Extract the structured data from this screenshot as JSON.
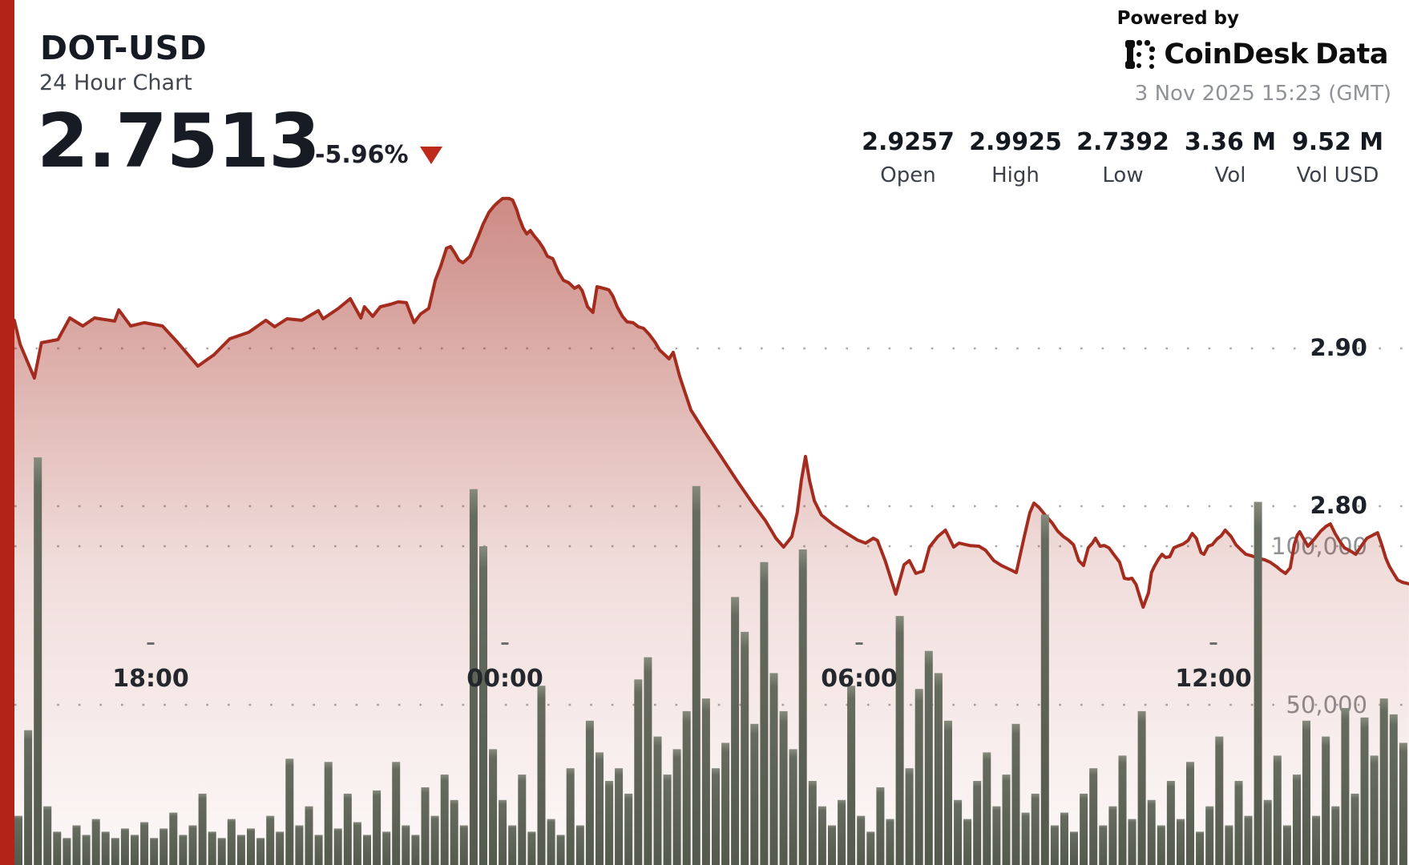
{
  "header": {
    "symbol": "DOT-USD",
    "subtitle": "24 Hour Chart",
    "price": "2.7513",
    "change": "-5.96%",
    "direction_icon": "down-triangle"
  },
  "branding": {
    "powered_by": "Powered by",
    "brand_name_1": "CoinDesk",
    "brand_name_2": "Data",
    "icon": "coindesk-logo-icon",
    "timestamp": "3 Nov 2025 15:23 (GMT)"
  },
  "stats": [
    {
      "value": "2.9257",
      "label": "Open"
    },
    {
      "value": "2.9925",
      "label": "High"
    },
    {
      "value": "2.7392",
      "label": "Low"
    },
    {
      "value": "3.36 M",
      "label": "Vol"
    },
    {
      "value": "9.52 M",
      "label": "Vol USD"
    }
  ],
  "colors": {
    "accent_red": "#b22418",
    "line_red": "#a42c1f",
    "area_red_rgb": "164,44,32",
    "bar_body": "#666b5f",
    "bar_top": "#868b7e",
    "bar_bottom": "#555a4e",
    "grid_dot": "#a9a9a9",
    "vol_label": "#8d9094",
    "price_label": "#1d212a",
    "x_label": "#24272c"
  },
  "chart_data": {
    "type": "area",
    "title": "DOT-USD 24 Hour Chart",
    "note": "t = hours since 00:00 of previous day (GMT); values >= 24 are current day. Chart window ends 3 Nov 2025 15:23 GMT.",
    "x_ticks": [
      {
        "label": "18:00",
        "t": 18
      },
      {
        "label": "00:00",
        "t": 24
      },
      {
        "label": "06:00",
        "t": 30
      },
      {
        "label": "12:00",
        "t": 36
      }
    ],
    "price_ticks": [
      {
        "label": "2.90",
        "value": 2.9
      },
      {
        "label": "2.80",
        "value": 2.8
      }
    ],
    "volume_ticks": [
      {
        "label": "100,000",
        "value": 100
      },
      {
        "label": "50,000",
        "value": 50
      }
    ],
    "price_range_visible": {
      "low": 2.7392,
      "high": 2.9925
    },
    "grid": "dotted-horizontal",
    "legend_position": "none",
    "price_series": [
      [
        15.69,
        2.9178
      ],
      [
        15.79,
        2.9025
      ],
      [
        16.03,
        2.8812
      ],
      [
        16.15,
        2.9036
      ],
      [
        16.43,
        2.9056
      ],
      [
        16.63,
        2.9193
      ],
      [
        16.85,
        2.9142
      ],
      [
        17.05,
        2.9193
      ],
      [
        17.39,
        2.9173
      ],
      [
        17.46,
        2.9244
      ],
      [
        17.66,
        2.9142
      ],
      [
        17.89,
        2.9163
      ],
      [
        18.2,
        2.9142
      ],
      [
        18.46,
        2.9036
      ],
      [
        18.8,
        2.8888
      ],
      [
        19.07,
        2.8959
      ],
      [
        19.34,
        2.9061
      ],
      [
        19.66,
        2.9102
      ],
      [
        19.95,
        2.9178
      ],
      [
        20.1,
        2.9137
      ],
      [
        20.31,
        2.9188
      ],
      [
        20.56,
        2.9178
      ],
      [
        20.84,
        2.9239
      ],
      [
        20.92,
        2.9188
      ],
      [
        21.18,
        2.9254
      ],
      [
        21.38,
        2.9315
      ],
      [
        21.56,
        2.9193
      ],
      [
        21.62,
        2.9264
      ],
      [
        21.76,
        2.9203
      ],
      [
        21.89,
        2.9264
      ],
      [
        22.06,
        2.9279
      ],
      [
        22.19,
        2.9295
      ],
      [
        22.33,
        2.929
      ],
      [
        22.46,
        2.9163
      ],
      [
        22.57,
        2.9218
      ],
      [
        22.71,
        2.9254
      ],
      [
        22.82,
        2.9432
      ],
      [
        22.91,
        2.9518
      ],
      [
        23.01,
        2.9635
      ],
      [
        23.08,
        2.9645
      ],
      [
        23.16,
        2.9599
      ],
      [
        23.22,
        2.9559
      ],
      [
        23.29,
        2.9543
      ],
      [
        23.41,
        2.9584
      ],
      [
        23.48,
        2.965
      ],
      [
        23.55,
        2.9711
      ],
      [
        23.63,
        2.9787
      ],
      [
        23.73,
        2.9863
      ],
      [
        23.82,
        2.9904
      ],
      [
        23.89,
        2.9929
      ],
      [
        23.96,
        2.995
      ],
      [
        24.07,
        2.995
      ],
      [
        24.13,
        2.994
      ],
      [
        24.2,
        2.9879
      ],
      [
        24.24,
        2.9828
      ],
      [
        24.31,
        2.9762
      ],
      [
        24.37,
        2.9726
      ],
      [
        24.43,
        2.9747
      ],
      [
        24.5,
        2.9711
      ],
      [
        24.58,
        2.9675
      ],
      [
        24.65,
        2.9635
      ],
      [
        24.72,
        2.9584
      ],
      [
        24.81,
        2.9569
      ],
      [
        24.91,
        2.9482
      ],
      [
        24.99,
        2.9432
      ],
      [
        25.08,
        2.9416
      ],
      [
        25.18,
        2.9381
      ],
      [
        25.25,
        2.9396
      ],
      [
        25.31,
        2.9365
      ],
      [
        25.4,
        2.9264
      ],
      [
        25.49,
        2.9228
      ],
      [
        25.56,
        2.9391
      ],
      [
        25.67,
        2.9381
      ],
      [
        25.76,
        2.9371
      ],
      [
        25.83,
        2.933
      ],
      [
        25.9,
        2.9264
      ],
      [
        25.99,
        2.9203
      ],
      [
        26.07,
        2.9168
      ],
      [
        26.17,
        2.9163
      ],
      [
        26.26,
        2.9137
      ],
      [
        26.35,
        2.9127
      ],
      [
        26.44,
        2.9091
      ],
      [
        26.54,
        2.9041
      ],
      [
        26.62,
        2.899
      ],
      [
        26.71,
        2.8959
      ],
      [
        26.78,
        2.8934
      ],
      [
        26.85,
        2.8975
      ],
      [
        26.96,
        2.8822
      ],
      [
        27.05,
        2.8721
      ],
      [
        27.15,
        2.8609
      ],
      [
        27.39,
        2.8467
      ],
      [
        27.66,
        2.8315
      ],
      [
        27.93,
        2.8162
      ],
      [
        28.21,
        2.801
      ],
      [
        28.41,
        2.7909
      ],
      [
        28.59,
        2.7797
      ],
      [
        28.72,
        2.7741
      ],
      [
        28.86,
        2.7807
      ],
      [
        28.95,
        2.7959
      ],
      [
        29.02,
        2.8162
      ],
      [
        29.09,
        2.8315
      ],
      [
        29.16,
        2.8162
      ],
      [
        29.24,
        2.8035
      ],
      [
        29.36,
        2.7944
      ],
      [
        29.56,
        2.7883
      ],
      [
        29.77,
        2.7832
      ],
      [
        29.97,
        2.7786
      ],
      [
        30.11,
        2.7766
      ],
      [
        30.24,
        2.7797
      ],
      [
        30.31,
        2.7782
      ],
      [
        30.44,
        2.7655
      ],
      [
        30.62,
        2.7442
      ],
      [
        30.76,
        2.7629
      ],
      [
        30.85,
        2.7655
      ],
      [
        30.96,
        2.7574
      ],
      [
        31.08,
        2.7589
      ],
      [
        31.19,
        2.7741
      ],
      [
        31.33,
        2.7807
      ],
      [
        31.46,
        2.7848
      ],
      [
        31.6,
        2.7741
      ],
      [
        31.69,
        2.7766
      ],
      [
        31.87,
        2.7751
      ],
      [
        32.03,
        2.7746
      ],
      [
        32.14,
        2.7721
      ],
      [
        32.28,
        2.7655
      ],
      [
        32.41,
        2.7624
      ],
      [
        32.58,
        2.7594
      ],
      [
        32.66,
        2.7579
      ],
      [
        32.79,
        2.7797
      ],
      [
        32.89,
        2.7959
      ],
      [
        32.96,
        2.802
      ],
      [
        33.05,
        2.799
      ],
      [
        33.16,
        2.7939
      ],
      [
        33.27,
        2.7893
      ],
      [
        33.36,
        2.7843
      ],
      [
        33.46,
        2.7807
      ],
      [
        33.54,
        2.7787
      ],
      [
        33.63,
        2.7756
      ],
      [
        33.72,
        2.7655
      ],
      [
        33.8,
        2.7624
      ],
      [
        33.88,
        2.7736
      ],
      [
        33.95,
        2.7766
      ],
      [
        34.0,
        2.7797
      ],
      [
        34.08,
        2.7746
      ],
      [
        34.15,
        2.7751
      ],
      [
        34.23,
        2.7736
      ],
      [
        34.31,
        2.7695
      ],
      [
        34.41,
        2.7645
      ],
      [
        34.49,
        2.7543
      ],
      [
        34.56,
        2.7538
      ],
      [
        34.62,
        2.7543
      ],
      [
        34.69,
        2.7503
      ],
      [
        34.76,
        2.7416
      ],
      [
        34.81,
        2.736
      ],
      [
        34.9,
        2.7452
      ],
      [
        34.95,
        2.7579
      ],
      [
        35.0,
        2.7619
      ],
      [
        35.07,
        2.7665
      ],
      [
        35.13,
        2.7695
      ],
      [
        35.19,
        2.7675
      ],
      [
        35.26,
        2.768
      ],
      [
        35.33,
        2.7736
      ],
      [
        35.42,
        2.7751
      ],
      [
        35.49,
        2.7761
      ],
      [
        35.57,
        2.7782
      ],
      [
        35.64,
        2.7827
      ],
      [
        35.71,
        2.7797
      ],
      [
        35.79,
        2.7706
      ],
      [
        35.84,
        2.7695
      ],
      [
        35.91,
        2.7746
      ],
      [
        35.98,
        2.7756
      ],
      [
        36.06,
        2.7792
      ],
      [
        36.13,
        2.7812
      ],
      [
        36.2,
        2.7848
      ],
      [
        36.3,
        2.7807
      ],
      [
        36.38,
        2.7756
      ],
      [
        36.46,
        2.7726
      ],
      [
        36.55,
        2.7695
      ],
      [
        36.65,
        2.7685
      ],
      [
        36.76,
        2.767
      ],
      [
        36.87,
        2.766
      ],
      [
        36.96,
        2.7645
      ],
      [
        37.06,
        2.7619
      ],
      [
        37.14,
        2.7594
      ],
      [
        37.22,
        2.7574
      ],
      [
        37.3,
        2.7609
      ],
      [
        37.37,
        2.7756
      ],
      [
        37.42,
        2.7817
      ],
      [
        37.46,
        2.7838
      ],
      [
        37.53,
        2.7792
      ],
      [
        37.6,
        2.7746
      ],
      [
        37.71,
        2.7792
      ],
      [
        37.82,
        2.7843
      ],
      [
        37.91,
        2.7873
      ],
      [
        37.98,
        2.7888
      ],
      [
        38.06,
        2.7827
      ],
      [
        38.14,
        2.7777
      ],
      [
        38.22,
        2.7736
      ],
      [
        38.32,
        2.7716
      ],
      [
        38.41,
        2.7695
      ],
      [
        38.51,
        2.7751
      ],
      [
        38.6,
        2.7797
      ],
      [
        38.7,
        2.7817
      ],
      [
        38.78,
        2.7832
      ],
      [
        38.85,
        2.7756
      ],
      [
        38.92,
        2.767
      ],
      [
        38.98,
        2.7619
      ],
      [
        39.05,
        2.7574
      ],
      [
        39.12,
        2.7533
      ],
      [
        39.2,
        2.7518
      ],
      [
        39.31,
        2.7508
      ]
    ],
    "volume_series": {
      "start_t": 15.69,
      "step_hours": 0.164,
      "unit": "thousands",
      "values": [
        15,
        42,
        128,
        18,
        10,
        8,
        12,
        9,
        14,
        10,
        8,
        11,
        9,
        13,
        8,
        11,
        16,
        9,
        12,
        22,
        10,
        8,
        14,
        9,
        11,
        8,
        15,
        10,
        33,
        12,
        18,
        9,
        32,
        11,
        22,
        13,
        9,
        23,
        10,
        32,
        12,
        9,
        24,
        15,
        28,
        20,
        12,
        118,
        100,
        36,
        20,
        12,
        28,
        10,
        56,
        14,
        9,
        30,
        12,
        45,
        35,
        26,
        30,
        22,
        58,
        65,
        40,
        28,
        36,
        48,
        119,
        52,
        30,
        38,
        84,
        73,
        44,
        95,
        60,
        48,
        36,
        99,
        26,
        18,
        12,
        20,
        56,
        15,
        10,
        24,
        14,
        78,
        30,
        55,
        67,
        60,
        45,
        20,
        14,
        26,
        35,
        18,
        28,
        44,
        16,
        22,
        110,
        12,
        16,
        10,
        22,
        30,
        12,
        18,
        34,
        14,
        48,
        20,
        12,
        26,
        14,
        32,
        10,
        18,
        40,
        12,
        26,
        15,
        114,
        20,
        34,
        12,
        28,
        45,
        15,
        40,
        18,
        49,
        22,
        46,
        34,
        52,
        47,
        38
      ]
    }
  }
}
